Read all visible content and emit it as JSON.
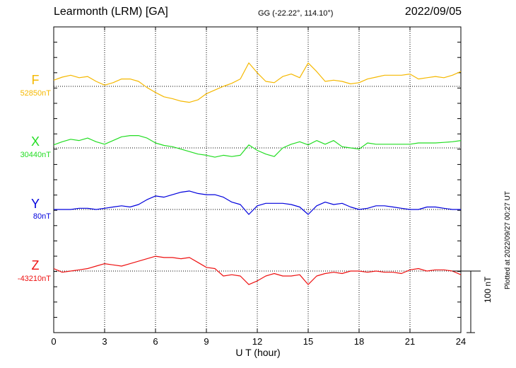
{
  "header": {
    "station": "Learmonth (LRM)  [GA]",
    "coords": "GG (-22.22°, 114.10°)",
    "date": "2022/09/05"
  },
  "footer": {
    "plotted": "Plotted at 2022/09/27 00:27 UT"
  },
  "chart_data": {
    "type": "line",
    "xlabel": "U T (hour)",
    "xlim": [
      0,
      24
    ],
    "xticks": [
      "0",
      "3",
      "6",
      "9",
      "12",
      "15",
      "18",
      "21",
      "24"
    ],
    "scale_bar": {
      "value": 100,
      "label": "100 nT"
    },
    "grid": true,
    "series": [
      {
        "name": "F",
        "baseline_label": "52850nT",
        "baseline": 52850,
        "color": "#f5b800",
        "x": [
          0,
          0.5,
          1,
          1.5,
          2,
          2.5,
          3,
          3.5,
          4,
          4.5,
          5,
          5.5,
          6,
          6.5,
          7,
          7.5,
          8,
          8.5,
          9,
          9.5,
          10,
          10.5,
          11,
          11.5,
          12,
          12.5,
          13,
          13.5,
          14,
          14.5,
          15,
          15.5,
          16,
          16.5,
          17,
          17.5,
          18,
          18.5,
          19,
          19.5,
          20,
          20.5,
          21,
          21.5,
          22,
          22.5,
          23,
          23.5,
          24
        ],
        "values": [
          52860,
          52865,
          52868,
          52864,
          52866,
          52858,
          52852,
          52856,
          52862,
          52862,
          52858,
          52848,
          52840,
          52833,
          52830,
          52826,
          52824,
          52828,
          52838,
          52844,
          52850,
          52855,
          52862,
          52888,
          52872,
          52858,
          52856,
          52866,
          52870,
          52864,
          52888,
          52874,
          52858,
          52860,
          52858,
          52854,
          52856,
          52862,
          52865,
          52868,
          52868,
          52868,
          52870,
          52862,
          52864,
          52866,
          52864,
          52868,
          52874
        ]
      },
      {
        "name": "X",
        "baseline_label": "30440nT",
        "baseline": 30440,
        "color": "#22dd22",
        "x": [
          0,
          0.5,
          1,
          1.5,
          2,
          2.5,
          3,
          3.5,
          4,
          4.5,
          5,
          5.5,
          6,
          6.5,
          7,
          7.5,
          8,
          8.5,
          9,
          9.5,
          10,
          10.5,
          11,
          11.5,
          12,
          12.5,
          13,
          13.5,
          14,
          14.5,
          15,
          15.5,
          16,
          16.5,
          17,
          17.5,
          18,
          18.5,
          19,
          19.5,
          20,
          20.5,
          21,
          21.5,
          22,
          22.5,
          23,
          23.5,
          24
        ],
        "values": [
          30445,
          30450,
          30454,
          30452,
          30456,
          30450,
          30446,
          30452,
          30458,
          30460,
          30460,
          30456,
          30448,
          30444,
          30442,
          30438,
          30434,
          30430,
          30428,
          30425,
          30428,
          30426,
          30428,
          30445,
          30436,
          30430,
          30426,
          30440,
          30446,
          30450,
          30445,
          30452,
          30446,
          30452,
          30442,
          30440,
          30438,
          30448,
          30446,
          30446,
          30446,
          30446,
          30446,
          30448,
          30448,
          30448,
          30449,
          30450,
          30452
        ]
      },
      {
        "name": "Y",
        "baseline_label": "80nT",
        "baseline": 80,
        "color": "#0000dd",
        "x": [
          0,
          0.5,
          1,
          1.5,
          2,
          2.5,
          3,
          3.5,
          4,
          4.5,
          5,
          5.5,
          6,
          6.5,
          7,
          7.5,
          8,
          8.5,
          9,
          9.5,
          10,
          10.5,
          11,
          11.5,
          12,
          12.5,
          13,
          13.5,
          14,
          14.5,
          15,
          15.5,
          16,
          16.5,
          17,
          17.5,
          18,
          18.5,
          19,
          19.5,
          20,
          20.5,
          21,
          21.5,
          22,
          22.5,
          23,
          23.5,
          24
        ],
        "values": [
          80,
          80,
          80,
          82,
          82,
          80,
          82,
          84,
          86,
          84,
          88,
          96,
          102,
          100,
          104,
          108,
          110,
          106,
          104,
          104,
          100,
          92,
          88,
          72,
          86,
          90,
          90,
          90,
          88,
          84,
          72,
          86,
          92,
          88,
          90,
          84,
          80,
          82,
          86,
          86,
          84,
          82,
          80,
          80,
          84,
          84,
          82,
          80,
          80
        ]
      },
      {
        "name": "Z",
        "baseline_label": "-43210nT",
        "baseline": -43210,
        "color": "#ee1111",
        "x": [
          0,
          0.5,
          1,
          1.5,
          2,
          2.5,
          3,
          3.5,
          4,
          4.5,
          5,
          5.5,
          6,
          6.5,
          7,
          7.5,
          8,
          8.5,
          9,
          9.5,
          10,
          10.5,
          11,
          11.5,
          12,
          12.5,
          13,
          13.5,
          14,
          14.5,
          15,
          15.5,
          16,
          16.5,
          17,
          17.5,
          18,
          18.5,
          19,
          19.5,
          20,
          20.5,
          21,
          21.5,
          22,
          22.5,
          23,
          23.5,
          24
        ],
        "values": [
          -43206,
          -43212,
          -43210,
          -43208,
          -43206,
          -43202,
          -43198,
          -43200,
          -43202,
          -43198,
          -43194,
          -43190,
          -43186,
          -43188,
          -43188,
          -43190,
          -43188,
          -43196,
          -43204,
          -43206,
          -43218,
          -43216,
          -43218,
          -43232,
          -43226,
          -43218,
          -43214,
          -43218,
          -43218,
          -43216,
          -43232,
          -43218,
          -43214,
          -43212,
          -43214,
          -43210,
          -43210,
          -43212,
          -43210,
          -43212,
          -43212,
          -43214,
          -43208,
          -43206,
          -43210,
          -43208,
          -43208,
          -43210,
          -43216
        ]
      }
    ]
  }
}
